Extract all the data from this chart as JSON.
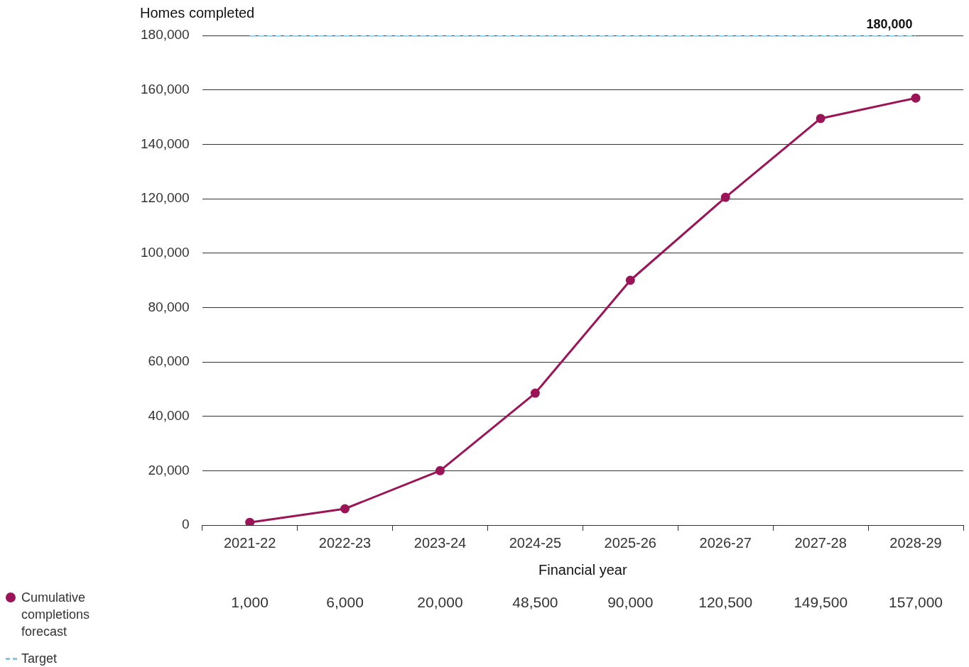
{
  "chart_data": {
    "type": "line",
    "ylabel": "Homes completed",
    "xlabel": "Financial year",
    "categories": [
      "2021-22",
      "2022-23",
      "2023-24",
      "2024-25",
      "2025-26",
      "2026-27",
      "2027-28",
      "2028-29"
    ],
    "series": [
      {
        "name": "Cumulative completions forecast",
        "color": "#9b1457",
        "values": [
          1000,
          6000,
          20000,
          48500,
          90000,
          120500,
          149500,
          157000
        ],
        "value_labels": [
          "1,000",
          "6,000",
          "20,000",
          "48,500",
          "90,000",
          "120,500",
          "149,500",
          "157,000"
        ],
        "marker": "circle",
        "line_style": "solid"
      },
      {
        "name": "Target",
        "color": "#7ec8e3",
        "values": [
          180000,
          180000,
          180000,
          180000,
          180000,
          180000,
          180000,
          180000
        ],
        "marker": "none",
        "line_style": "dashed"
      }
    ],
    "annotations": [
      {
        "text": "180,000",
        "x": "2028-29",
        "y": 180000
      }
    ],
    "ylim": [
      0,
      180000
    ],
    "yticks": [
      0,
      {
        "value": 20000,
        "label": "20,000"
      },
      {
        "value": 40000,
        "label": "40,000"
      },
      {
        "value": 60000,
        "label": "60,000"
      },
      {
        "value": 80000,
        "label": "80,000"
      },
      {
        "value": 100000,
        "label": "100,000"
      },
      {
        "value": 120000,
        "label": "120,000"
      },
      {
        "value": 140000,
        "label": "140,000"
      },
      {
        "value": 160000,
        "label": "160,000"
      },
      {
        "value": 180000,
        "label": "180,000"
      }
    ],
    "grid": "y",
    "legend": "bottom left"
  }
}
